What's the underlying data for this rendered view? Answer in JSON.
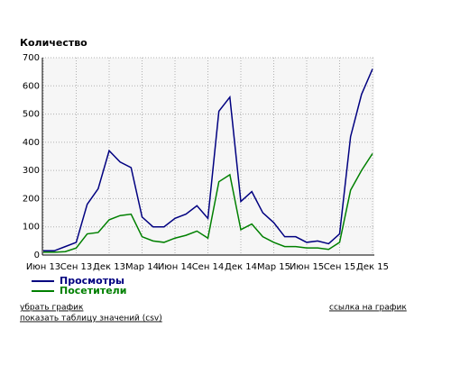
{
  "chart_data": {
    "type": "line",
    "title": "Количество",
    "categories": [
      "Июн 13",
      null,
      null,
      "Сен 13",
      null,
      null,
      "Дек 13",
      null,
      null,
      "Мар 14",
      null,
      null,
      "Июн 14",
      null,
      null,
      "Сен 14",
      null,
      null,
      "Дек 14",
      null,
      null,
      "Мар 15",
      null,
      null,
      "Июн 15",
      null,
      null,
      "Сен 15",
      null,
      null,
      "Дек 15"
    ],
    "series": [
      {
        "name": "Просмотры",
        "color": "#000080",
        "values": [
          15,
          15,
          30,
          45,
          180,
          235,
          370,
          330,
          310,
          135,
          100,
          100,
          130,
          145,
          175,
          130,
          510,
          560,
          190,
          225,
          150,
          115,
          65,
          65,
          45,
          50,
          40,
          75,
          420,
          570,
          660
        ]
      },
      {
        "name": "Посетители",
        "color": "#008000",
        "values": [
          10,
          10,
          12,
          25,
          75,
          80,
          125,
          140,
          145,
          65,
          50,
          45,
          60,
          70,
          85,
          60,
          260,
          285,
          90,
          110,
          65,
          45,
          30,
          30,
          25,
          25,
          20,
          45,
          230,
          300,
          360
        ]
      }
    ],
    "ylim": [
      0,
      700
    ],
    "yticks": [
      0,
      100,
      200,
      300,
      400,
      500,
      600,
      700
    ],
    "grid": true
  },
  "links": {
    "remove": "убрать график",
    "link": "ссылка на график",
    "table": "показать таблицу значений (csv)"
  }
}
